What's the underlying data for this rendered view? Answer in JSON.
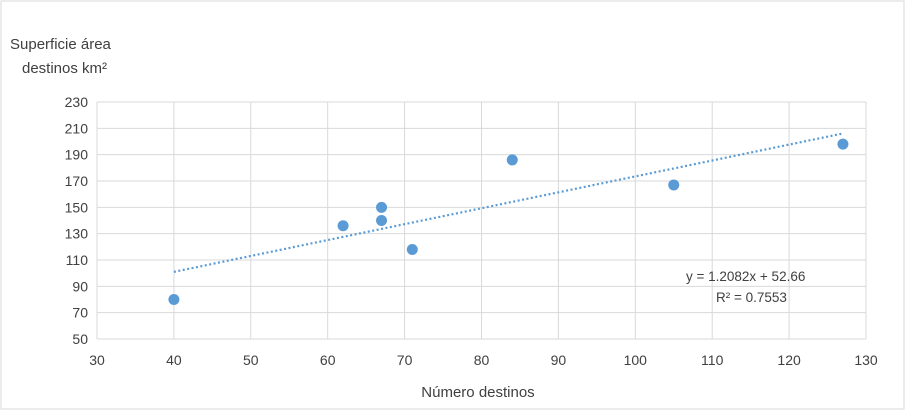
{
  "chart_data": {
    "type": "scatter",
    "ylabel_line1": "Superficie área",
    "ylabel_line2": "destinos km²",
    "xlabel": "Número destinos",
    "xlim": [
      30,
      130
    ],
    "ylim": [
      50,
      230
    ],
    "xticks": [
      30,
      40,
      50,
      60,
      70,
      80,
      90,
      100,
      110,
      120,
      130
    ],
    "yticks": [
      50,
      70,
      90,
      110,
      130,
      150,
      170,
      190,
      210,
      230
    ],
    "grid": true,
    "points": [
      {
        "x": 40,
        "y": 80
      },
      {
        "x": 62,
        "y": 136
      },
      {
        "x": 67,
        "y": 150
      },
      {
        "x": 67,
        "y": 140
      },
      {
        "x": 71,
        "y": 118
      },
      {
        "x": 84,
        "y": 186
      },
      {
        "x": 105,
        "y": 167
      },
      {
        "x": 127,
        "y": 198
      }
    ],
    "trendline": {
      "slope": 1.2082,
      "intercept": 52.66,
      "x_range": [
        40,
        127
      ],
      "equation_label": "y = 1.2082x + 52.66",
      "r2_label": "R² = 0.7553"
    },
    "colors": {
      "marker": "#5B9BD5",
      "trendline": "#5B9BD5",
      "grid": "#D9D9D9",
      "frame": "#D9D9D9"
    }
  }
}
